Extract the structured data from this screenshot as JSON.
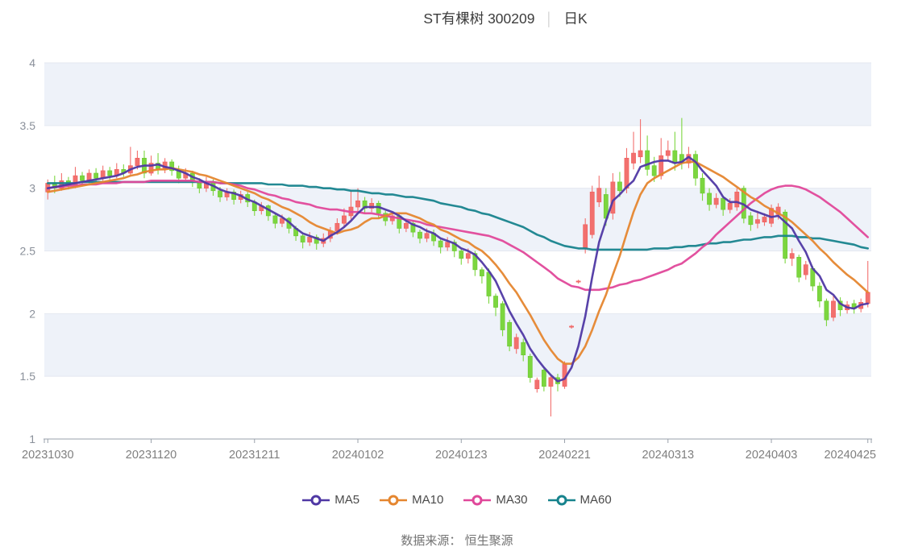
{
  "title": {
    "stock": "ST有棵树 300209",
    "separator": "│",
    "period": "日K"
  },
  "footer": {
    "source": "数据来源： 恒生聚源"
  },
  "chart_data": {
    "type": "candlestick",
    "title": "ST有棵树 300209 日K",
    "ylim": [
      1,
      4
    ],
    "y_ticks": [
      4,
      3.5,
      3,
      2.5,
      2,
      1.5,
      1
    ],
    "x_tick_labels": [
      "20231030",
      "20231120",
      "20231211",
      "20240102",
      "20240123",
      "20240221",
      "20240313",
      "20240403",
      "20240425"
    ],
    "x_tick_indices": [
      0,
      15,
      30,
      45,
      60,
      75,
      90,
      105,
      119
    ],
    "grid": "horizontal-only",
    "band_color": "#eef2f9",
    "grid_color": "#e4e8f0",
    "axis_color": "#9aa1ab",
    "up_color": "#f2706e",
    "up_border": "#ef5f5e",
    "down_color": "#7cd63f",
    "down_border": "#6bc832",
    "candles_format": [
      "open",
      "close",
      "low",
      "high"
    ],
    "candles": [
      [
        2.97,
        3.04,
        2.91,
        3.07
      ],
      [
        3.04,
        3.0,
        2.96,
        3.1
      ],
      [
        3.0,
        3.06,
        2.98,
        3.12
      ],
      [
        3.06,
        3.02,
        2.99,
        3.09
      ],
      [
        3.02,
        3.1,
        3.0,
        3.17
      ],
      [
        3.1,
        3.06,
        3.02,
        3.13
      ],
      [
        3.06,
        3.12,
        3.04,
        3.15
      ],
      [
        3.12,
        3.08,
        3.05,
        3.16
      ],
      [
        3.08,
        3.14,
        3.06,
        3.18
      ],
      [
        3.14,
        3.1,
        3.07,
        3.17
      ],
      [
        3.1,
        3.15,
        3.08,
        3.2
      ],
      [
        3.15,
        3.12,
        3.09,
        3.19
      ],
      [
        3.12,
        3.18,
        3.1,
        3.33
      ],
      [
        3.18,
        3.24,
        3.15,
        3.3
      ],
      [
        3.24,
        3.12,
        3.08,
        3.3
      ],
      [
        3.12,
        3.2,
        3.1,
        3.26
      ],
      [
        3.2,
        3.15,
        3.11,
        3.28
      ],
      [
        3.15,
        3.21,
        3.12,
        3.24
      ],
      [
        3.21,
        3.14,
        3.1,
        3.23
      ],
      [
        3.14,
        3.08,
        3.04,
        3.18
      ],
      [
        3.08,
        3.12,
        3.05,
        3.16
      ],
      [
        3.12,
        3.05,
        3.01,
        3.14
      ],
      [
        3.05,
        3.0,
        2.96,
        3.08
      ],
      [
        3.0,
        3.05,
        2.97,
        3.09
      ],
      [
        3.05,
        2.98,
        2.94,
        3.07
      ],
      [
        2.98,
        2.93,
        2.89,
        3.01
      ],
      [
        2.93,
        2.97,
        2.9,
        3.0
      ],
      [
        2.97,
        2.91,
        2.87,
        2.99
      ],
      [
        2.91,
        2.95,
        2.88,
        2.98
      ],
      [
        2.95,
        2.89,
        2.85,
        2.97
      ],
      [
        2.89,
        2.82,
        2.78,
        2.91
      ],
      [
        2.82,
        2.86,
        2.79,
        2.89
      ],
      [
        2.86,
        2.78,
        2.74,
        2.87
      ],
      [
        2.78,
        2.72,
        2.68,
        2.8
      ],
      [
        2.72,
        2.76,
        2.69,
        2.79
      ],
      [
        2.76,
        2.68,
        2.64,
        2.77
      ],
      [
        2.68,
        2.62,
        2.58,
        2.7
      ],
      [
        2.62,
        2.57,
        2.52,
        2.64
      ],
      [
        2.57,
        2.61,
        2.54,
        2.65
      ],
      [
        2.61,
        2.56,
        2.51,
        2.63
      ],
      [
        2.56,
        2.6,
        2.53,
        2.64
      ],
      [
        2.6,
        2.66,
        2.57,
        2.69
      ],
      [
        2.66,
        2.72,
        2.63,
        2.76
      ],
      [
        2.72,
        2.78,
        2.69,
        2.84
      ],
      [
        2.78,
        2.85,
        2.75,
        2.98
      ],
      [
        2.85,
        2.9,
        2.81,
        3.0
      ],
      [
        2.9,
        2.84,
        2.8,
        2.93
      ],
      [
        2.84,
        2.88,
        2.81,
        2.92
      ],
      [
        2.88,
        2.8,
        2.76,
        2.9
      ],
      [
        2.8,
        2.74,
        2.7,
        2.82
      ],
      [
        2.74,
        2.78,
        2.71,
        2.81
      ],
      [
        2.78,
        2.68,
        2.64,
        2.8
      ],
      [
        2.68,
        2.72,
        2.65,
        2.75
      ],
      [
        2.72,
        2.65,
        2.61,
        2.74
      ],
      [
        2.65,
        2.6,
        2.56,
        2.67
      ],
      [
        2.6,
        2.64,
        2.57,
        2.68
      ],
      [
        2.64,
        2.58,
        2.54,
        2.67
      ],
      [
        2.58,
        2.53,
        2.48,
        2.6
      ],
      [
        2.53,
        2.57,
        2.5,
        2.61
      ],
      [
        2.57,
        2.5,
        2.45,
        2.59
      ],
      [
        2.5,
        2.44,
        2.39,
        2.52
      ],
      [
        2.44,
        2.48,
        2.4,
        2.52
      ],
      [
        2.48,
        2.35,
        2.3,
        2.5
      ],
      [
        2.35,
        2.3,
        2.24,
        2.37
      ],
      [
        2.33,
        2.14,
        2.08,
        2.36
      ],
      [
        2.14,
        2.05,
        1.98,
        2.16
      ],
      [
        2.08,
        1.87,
        1.82,
        2.1
      ],
      [
        1.93,
        1.74,
        1.7,
        1.95
      ],
      [
        1.72,
        1.81,
        1.68,
        1.84
      ],
      [
        1.77,
        1.67,
        1.62,
        1.8
      ],
      [
        1.66,
        1.49,
        1.45,
        1.68
      ],
      [
        1.4,
        1.47,
        1.37,
        1.49
      ],
      [
        1.55,
        1.42,
        1.38,
        1.57
      ],
      [
        1.42,
        1.49,
        1.18,
        1.51
      ],
      [
        1.49,
        1.44,
        1.38,
        1.52
      ],
      [
        1.42,
        1.6,
        1.4,
        1.62
      ],
      [
        1.9,
        1.9,
        1.88,
        1.91
      ],
      [
        2.26,
        2.26,
        2.24,
        2.27
      ],
      [
        2.52,
        2.71,
        2.48,
        2.76
      ],
      [
        2.63,
        2.97,
        2.6,
        3.02
      ],
      [
        2.89,
        3.0,
        2.85,
        3.1
      ],
      [
        2.95,
        2.76,
        2.7,
        3.0
      ],
      [
        2.8,
        3.05,
        2.75,
        3.12
      ],
      [
        3.05,
        2.98,
        2.93,
        3.13
      ],
      [
        3.0,
        3.24,
        2.96,
        3.32
      ],
      [
        3.2,
        3.28,
        3.15,
        3.45
      ],
      [
        3.25,
        3.3,
        3.2,
        3.55
      ],
      [
        3.3,
        3.15,
        3.1,
        3.42
      ],
      [
        3.18,
        3.1,
        3.05,
        3.25
      ],
      [
        3.1,
        3.26,
        3.07,
        3.4
      ],
      [
        3.26,
        3.3,
        3.22,
        3.38
      ],
      [
        3.3,
        3.2,
        3.14,
        3.45
      ],
      [
        3.27,
        3.2,
        3.15,
        3.56
      ],
      [
        3.2,
        3.27,
        3.16,
        3.33
      ],
      [
        3.27,
        3.08,
        3.02,
        3.3
      ],
      [
        3.08,
        2.96,
        2.9,
        3.12
      ],
      [
        2.96,
        2.87,
        2.82,
        3.0
      ],
      [
        2.87,
        2.92,
        2.84,
        2.96
      ],
      [
        2.92,
        2.83,
        2.78,
        2.94
      ],
      [
        2.83,
        2.88,
        2.8,
        2.92
      ],
      [
        2.85,
        2.97,
        2.82,
        3.0
      ],
      [
        3.0,
        2.76,
        2.72,
        3.02
      ],
      [
        2.78,
        2.71,
        2.66,
        2.81
      ],
      [
        2.72,
        2.75,
        2.68,
        2.82
      ],
      [
        2.73,
        2.77,
        2.7,
        2.8
      ],
      [
        2.72,
        2.84,
        2.69,
        2.87
      ],
      [
        2.79,
        2.85,
        2.75,
        2.88
      ],
      [
        2.81,
        2.44,
        2.4,
        2.83
      ],
      [
        2.44,
        2.48,
        2.38,
        2.52
      ],
      [
        2.45,
        2.29,
        2.25,
        2.47
      ],
      [
        2.31,
        2.39,
        2.27,
        2.42
      ],
      [
        2.36,
        2.22,
        2.18,
        2.38
      ],
      [
        2.22,
        2.1,
        2.05,
        2.25
      ],
      [
        2.1,
        1.95,
        1.9,
        2.12
      ],
      [
        1.97,
        2.1,
        1.94,
        2.14
      ],
      [
        2.1,
        2.03,
        1.98,
        2.13
      ],
      [
        2.03,
        2.07,
        2.0,
        2.1
      ],
      [
        2.08,
        2.04,
        2.0,
        2.11
      ],
      [
        2.04,
        2.09,
        2.01,
        2.12
      ],
      [
        2.08,
        2.17,
        2.05,
        2.42
      ]
    ],
    "series": [
      {
        "name": "MA5",
        "color": "#4f38a4",
        "values": [
          3.0,
          3.01,
          3.02,
          3.03,
          3.04,
          3.05,
          3.06,
          3.07,
          3.08,
          3.09,
          3.1,
          3.12,
          3.15,
          3.17,
          3.18,
          3.18,
          3.19,
          3.17,
          3.16,
          3.14,
          3.12,
          3.09,
          3.07,
          3.04,
          3.02,
          2.99,
          2.97,
          2.96,
          2.94,
          2.91,
          2.89,
          2.86,
          2.83,
          2.8,
          2.77,
          2.73,
          2.68,
          2.64,
          2.62,
          2.6,
          2.58,
          2.62,
          2.65,
          2.69,
          2.74,
          2.8,
          2.85,
          2.85,
          2.85,
          2.83,
          2.81,
          2.78,
          2.74,
          2.71,
          2.69,
          2.66,
          2.64,
          2.6,
          2.58,
          2.56,
          2.52,
          2.5,
          2.47,
          2.41,
          2.34,
          2.26,
          2.14,
          2.02,
          1.92,
          1.83,
          1.72,
          1.64,
          1.57,
          1.51,
          1.46,
          1.48,
          1.57,
          1.74,
          1.98,
          2.29,
          2.57,
          2.74,
          2.9,
          2.95,
          3.01,
          3.06,
          3.17,
          3.19,
          3.21,
          3.22,
          3.22,
          3.2,
          3.21,
          3.25,
          3.21,
          3.14,
          3.08,
          3.02,
          2.93,
          2.89,
          2.89,
          2.87,
          2.83,
          2.81,
          2.79,
          2.77,
          2.78,
          2.73,
          2.68,
          2.58,
          2.49,
          2.36,
          2.3,
          2.19,
          2.15,
          2.08,
          2.05,
          2.04,
          2.07,
          2.08
        ]
      },
      {
        "name": "MA10",
        "color": "#e5862f",
        "values": [
          2.97,
          2.98,
          2.99,
          3.0,
          3.01,
          3.02,
          3.03,
          3.04,
          3.05,
          3.06,
          3.07,
          3.08,
          3.1,
          3.11,
          3.13,
          3.14,
          3.15,
          3.15,
          3.16,
          3.15,
          3.14,
          3.13,
          3.11,
          3.1,
          3.08,
          3.06,
          3.04,
          3.02,
          3.0,
          2.98,
          2.96,
          2.93,
          2.91,
          2.88,
          2.85,
          2.83,
          2.8,
          2.77,
          2.73,
          2.7,
          2.68,
          2.66,
          2.64,
          2.66,
          2.67,
          2.69,
          2.73,
          2.76,
          2.76,
          2.78,
          2.8,
          2.8,
          2.8,
          2.78,
          2.76,
          2.73,
          2.71,
          2.67,
          2.65,
          2.62,
          2.59,
          2.57,
          2.53,
          2.5,
          2.45,
          2.39,
          2.32,
          2.24,
          2.17,
          2.08,
          1.99,
          1.89,
          1.79,
          1.71,
          1.64,
          1.6,
          1.6,
          1.65,
          1.74,
          1.87,
          2.02,
          2.15,
          2.31,
          2.46,
          2.64,
          2.81,
          2.95,
          3.04,
          3.08,
          3.11,
          3.14,
          3.17,
          3.2,
          3.21,
          3.21,
          3.18,
          3.15,
          3.12,
          3.09,
          3.05,
          3.01,
          2.97,
          2.93,
          2.9,
          2.86,
          2.83,
          2.8,
          2.77,
          2.73,
          2.68,
          2.63,
          2.58,
          2.52,
          2.47,
          2.41,
          2.36,
          2.31,
          2.27,
          2.22,
          2.17
        ]
      },
      {
        "name": "MA30",
        "color": "#e0489a",
        "values": [
          3.0,
          3.01,
          3.01,
          3.02,
          3.02,
          3.03,
          3.03,
          3.03,
          3.04,
          3.04,
          3.04,
          3.05,
          3.05,
          3.05,
          3.05,
          3.06,
          3.06,
          3.06,
          3.06,
          3.06,
          3.06,
          3.06,
          3.05,
          3.05,
          3.05,
          3.04,
          3.04,
          3.03,
          3.02,
          3.0,
          2.99,
          2.97,
          2.95,
          2.94,
          2.92,
          2.91,
          2.89,
          2.88,
          2.87,
          2.85,
          2.84,
          2.83,
          2.83,
          2.82,
          2.81,
          2.81,
          2.8,
          2.8,
          2.79,
          2.78,
          2.77,
          2.76,
          2.75,
          2.74,
          2.73,
          2.71,
          2.7,
          2.69,
          2.68,
          2.67,
          2.66,
          2.65,
          2.64,
          2.63,
          2.62,
          2.6,
          2.58,
          2.55,
          2.52,
          2.49,
          2.45,
          2.41,
          2.37,
          2.33,
          2.28,
          2.25,
          2.22,
          2.21,
          2.19,
          2.19,
          2.19,
          2.2,
          2.21,
          2.23,
          2.24,
          2.26,
          2.27,
          2.29,
          2.31,
          2.33,
          2.35,
          2.38,
          2.4,
          2.44,
          2.48,
          2.53,
          2.57,
          2.63,
          2.68,
          2.73,
          2.78,
          2.83,
          2.88,
          2.92,
          2.96,
          2.99,
          3.01,
          3.02,
          3.02,
          3.01,
          2.99,
          2.96,
          2.93,
          2.89,
          2.85,
          2.81,
          2.76,
          2.71,
          2.66,
          2.61
        ]
      },
      {
        "name": "MA60",
        "color": "#17838d",
        "values": [
          3.04,
          3.04,
          3.04,
          3.04,
          3.04,
          3.05,
          3.05,
          3.05,
          3.05,
          3.05,
          3.05,
          3.05,
          3.05,
          3.05,
          3.05,
          3.05,
          3.05,
          3.05,
          3.05,
          3.05,
          3.05,
          3.05,
          3.05,
          3.05,
          3.05,
          3.04,
          3.04,
          3.04,
          3.04,
          3.04,
          3.04,
          3.04,
          3.03,
          3.03,
          3.03,
          3.02,
          3.02,
          3.02,
          3.01,
          3.01,
          3.0,
          3.0,
          2.99,
          2.99,
          2.98,
          2.98,
          2.97,
          2.96,
          2.96,
          2.95,
          2.95,
          2.94,
          2.93,
          2.93,
          2.92,
          2.91,
          2.9,
          2.88,
          2.87,
          2.86,
          2.85,
          2.83,
          2.82,
          2.8,
          2.79,
          2.77,
          2.75,
          2.73,
          2.71,
          2.69,
          2.66,
          2.63,
          2.61,
          2.58,
          2.56,
          2.54,
          2.53,
          2.52,
          2.52,
          2.51,
          2.51,
          2.51,
          2.51,
          2.51,
          2.51,
          2.51,
          2.51,
          2.51,
          2.52,
          2.52,
          2.52,
          2.53,
          2.53,
          2.54,
          2.54,
          2.55,
          2.56,
          2.56,
          2.57,
          2.57,
          2.58,
          2.59,
          2.59,
          2.6,
          2.61,
          2.61,
          2.62,
          2.62,
          2.62,
          2.61,
          2.61,
          2.6,
          2.6,
          2.59,
          2.58,
          2.57,
          2.56,
          2.55,
          2.53,
          2.52
        ]
      }
    ]
  }
}
